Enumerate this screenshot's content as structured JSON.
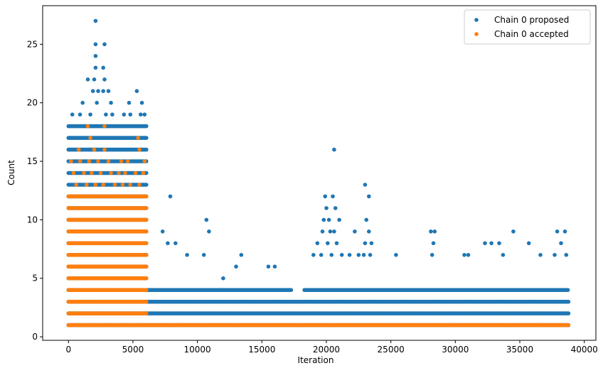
{
  "chart_data": {
    "type": "scatter",
    "xlabel": "Iteration",
    "ylabel": "Count",
    "xlim": [
      -2000,
      40900
    ],
    "ylim": [
      -0.3,
      28.3
    ],
    "xticks": [
      0,
      5000,
      10000,
      15000,
      20000,
      25000,
      30000,
      35000,
      40000
    ],
    "yticks": [
      0,
      5,
      10,
      15,
      20,
      25
    ],
    "legend_position": "top-right",
    "grid": false,
    "series": [
      {
        "name": "Chain 0 proposed",
        "color": "#1f77b4",
        "bands": [
          {
            "x_start": 0,
            "x_end": 6100,
            "y_values": [
              1,
              2,
              3,
              4,
              5,
              6,
              7,
              8,
              9,
              10,
              11,
              12,
              13,
              14,
              15,
              16,
              17,
              18
            ]
          },
          {
            "x_start": 6100,
            "x_end": 38800,
            "y_values": [
              1,
              2,
              3
            ]
          },
          {
            "x_start": 6100,
            "x_end": 17300,
            "y_values": [
              4
            ]
          },
          {
            "x_start": 18300,
            "x_end": 38800,
            "y_values": [
              4
            ]
          }
        ],
        "points": [
          {
            "x": 2100,
            "y": 27
          },
          {
            "x": 2100,
            "y": 25
          },
          {
            "x": 2800,
            "y": 25
          },
          {
            "x": 2100,
            "y": 24
          },
          {
            "x": 2100,
            "y": 23
          },
          {
            "x": 2700,
            "y": 23
          },
          {
            "x": 2000,
            "y": 22
          },
          {
            "x": 2800,
            "y": 22
          },
          {
            "x": 1500,
            "y": 22
          },
          {
            "x": 1900,
            "y": 21
          },
          {
            "x": 2300,
            "y": 21
          },
          {
            "x": 2700,
            "y": 21
          },
          {
            "x": 3100,
            "y": 21
          },
          {
            "x": 5300,
            "y": 21
          },
          {
            "x": 1100,
            "y": 20
          },
          {
            "x": 2200,
            "y": 20
          },
          {
            "x": 3300,
            "y": 20
          },
          {
            "x": 4700,
            "y": 20
          },
          {
            "x": 5700,
            "y": 20
          },
          {
            "x": 300,
            "y": 19
          },
          {
            "x": 900,
            "y": 19
          },
          {
            "x": 1700,
            "y": 19
          },
          {
            "x": 2900,
            "y": 19
          },
          {
            "x": 3400,
            "y": 19
          },
          {
            "x": 4300,
            "y": 19
          },
          {
            "x": 4800,
            "y": 19
          },
          {
            "x": 5600,
            "y": 19
          },
          {
            "x": 5900,
            "y": 19
          },
          {
            "x": 7900,
            "y": 12
          },
          {
            "x": 7300,
            "y": 9
          },
          {
            "x": 7700,
            "y": 8
          },
          {
            "x": 8300,
            "y": 8
          },
          {
            "x": 10700,
            "y": 10
          },
          {
            "x": 10900,
            "y": 9
          },
          {
            "x": 9200,
            "y": 7
          },
          {
            "x": 10500,
            "y": 7
          },
          {
            "x": 13400,
            "y": 7
          },
          {
            "x": 16000,
            "y": 6
          },
          {
            "x": 12000,
            "y": 5
          },
          {
            "x": 13000,
            "y": 6
          },
          {
            "x": 15500,
            "y": 6
          },
          {
            "x": 20600,
            "y": 16
          },
          {
            "x": 23000,
            "y": 13
          },
          {
            "x": 23300,
            "y": 12
          },
          {
            "x": 19900,
            "y": 12
          },
          {
            "x": 20500,
            "y": 12
          },
          {
            "x": 20700,
            "y": 11
          },
          {
            "x": 20000,
            "y": 11
          },
          {
            "x": 20200,
            "y": 10
          },
          {
            "x": 23100,
            "y": 10
          },
          {
            "x": 19800,
            "y": 10
          },
          {
            "x": 21000,
            "y": 10
          },
          {
            "x": 19700,
            "y": 9
          },
          {
            "x": 20300,
            "y": 9
          },
          {
            "x": 20600,
            "y": 9
          },
          {
            "x": 22200,
            "y": 9
          },
          {
            "x": 23300,
            "y": 9
          },
          {
            "x": 19300,
            "y": 8
          },
          {
            "x": 20100,
            "y": 8
          },
          {
            "x": 20800,
            "y": 8
          },
          {
            "x": 23000,
            "y": 8
          },
          {
            "x": 23500,
            "y": 8
          },
          {
            "x": 19000,
            "y": 7
          },
          {
            "x": 19600,
            "y": 7
          },
          {
            "x": 20400,
            "y": 7
          },
          {
            "x": 21200,
            "y": 7
          },
          {
            "x": 21800,
            "y": 7
          },
          {
            "x": 22500,
            "y": 7
          },
          {
            "x": 22900,
            "y": 7
          },
          {
            "x": 23400,
            "y": 7
          },
          {
            "x": 25400,
            "y": 7
          },
          {
            "x": 28100,
            "y": 9
          },
          {
            "x": 28400,
            "y": 9
          },
          {
            "x": 28300,
            "y": 8
          },
          {
            "x": 28200,
            "y": 7
          },
          {
            "x": 30700,
            "y": 7
          },
          {
            "x": 32300,
            "y": 8
          },
          {
            "x": 32800,
            "y": 8
          },
          {
            "x": 33400,
            "y": 8
          },
          {
            "x": 34500,
            "y": 9
          },
          {
            "x": 35700,
            "y": 8
          },
          {
            "x": 36600,
            "y": 7
          },
          {
            "x": 37900,
            "y": 9
          },
          {
            "x": 38500,
            "y": 9
          },
          {
            "x": 38200,
            "y": 8
          },
          {
            "x": 37700,
            "y": 7
          },
          {
            "x": 38600,
            "y": 7
          },
          {
            "x": 31000,
            "y": 7
          },
          {
            "x": 33700,
            "y": 7
          }
        ]
      },
      {
        "name": "Chain 0 accepted",
        "color": "#ff7f0e",
        "bands": [
          {
            "x_start": 0,
            "x_end": 6100,
            "y_values": [
              1,
              2,
              3,
              4,
              5,
              6,
              7,
              8,
              9,
              10,
              11,
              12
            ]
          },
          {
            "x_start": 6100,
            "x_end": 38800,
            "y_values": [
              1
            ]
          }
        ],
        "points": [
          {
            "x": 1500,
            "y": 18
          },
          {
            "x": 2800,
            "y": 18
          },
          {
            "x": 1700,
            "y": 17
          },
          {
            "x": 5400,
            "y": 17
          },
          {
            "x": 800,
            "y": 16
          },
          {
            "x": 2000,
            "y": 16
          },
          {
            "x": 2800,
            "y": 16
          },
          {
            "x": 5500,
            "y": 16
          },
          {
            "x": 200,
            "y": 15
          },
          {
            "x": 900,
            "y": 15
          },
          {
            "x": 1600,
            "y": 15
          },
          {
            "x": 2300,
            "y": 15
          },
          {
            "x": 3100,
            "y": 15
          },
          {
            "x": 4100,
            "y": 15
          },
          {
            "x": 4600,
            "y": 15
          },
          {
            "x": 5900,
            "y": 15
          },
          {
            "x": 400,
            "y": 14
          },
          {
            "x": 1200,
            "y": 14
          },
          {
            "x": 1800,
            "y": 14
          },
          {
            "x": 2500,
            "y": 14
          },
          {
            "x": 3300,
            "y": 14
          },
          {
            "x": 3900,
            "y": 14
          },
          {
            "x": 4400,
            "y": 14
          },
          {
            "x": 5200,
            "y": 14
          },
          {
            "x": 5800,
            "y": 14
          },
          {
            "x": 600,
            "y": 13
          },
          {
            "x": 1400,
            "y": 13
          },
          {
            "x": 2100,
            "y": 13
          },
          {
            "x": 2700,
            "y": 13
          },
          {
            "x": 3600,
            "y": 13
          },
          {
            "x": 4200,
            "y": 13
          },
          {
            "x": 4800,
            "y": 13
          },
          {
            "x": 5500,
            "y": 13
          }
        ]
      }
    ]
  }
}
